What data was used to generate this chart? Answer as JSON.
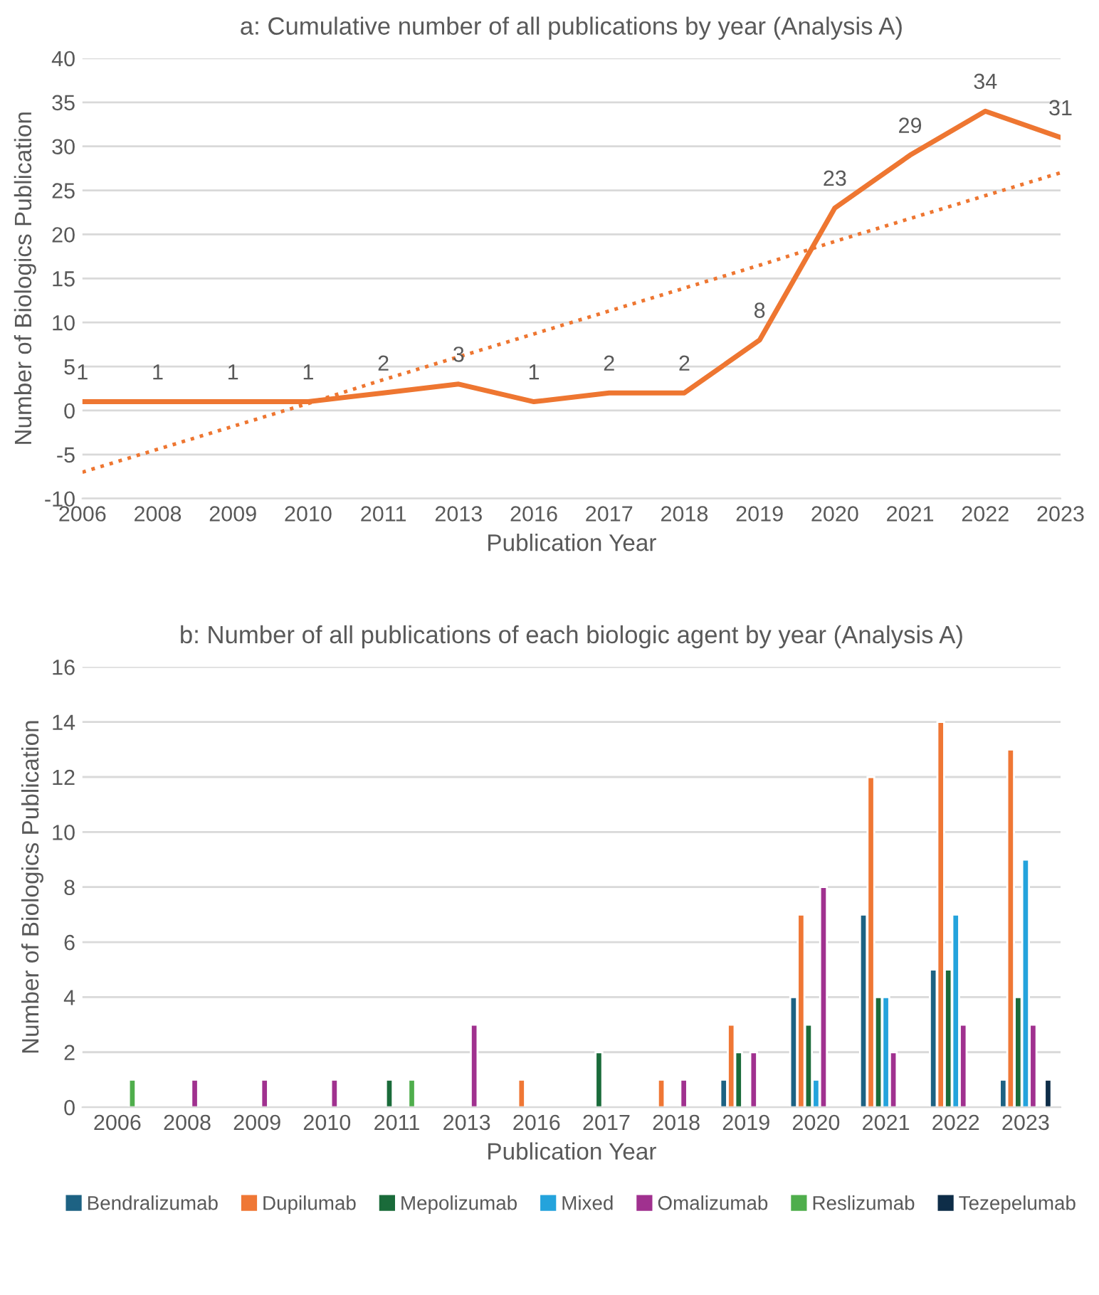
{
  "chart_data": [
    {
      "type": "line",
      "title": "a: Cumulative number of all publications by year (Analysis A)",
      "xlabel": "Publication Year",
      "ylabel": "Number of Biologics Publication",
      "categories": [
        "2006",
        "2008",
        "2009",
        "2010",
        "2011",
        "2013",
        "2016",
        "2017",
        "2018",
        "2019",
        "2020",
        "2021",
        "2022",
        "2023"
      ],
      "series": [
        {
          "color": "#ee7631",
          "line_style": "solid",
          "values": [
            1,
            1,
            1,
            1,
            2,
            3,
            1,
            2,
            2,
            8,
            23,
            29,
            34,
            31
          ],
          "value_labels": [
            "1",
            "1",
            "1",
            "1",
            "2",
            "3",
            "1",
            "2",
            "2",
            "8",
            "23",
            "29",
            "34",
            "31"
          ]
        },
        {
          "color": "#ee7631",
          "line_style": "dotted",
          "values": [
            -7,
            -4.4,
            -1.8,
            0.8,
            3.5,
            6.1,
            8.7,
            11.3,
            13.9,
            16.5,
            19.2,
            21.8,
            24.4,
            27
          ]
        }
      ],
      "ylim": [
        -10,
        40
      ],
      "yticks": [
        -10,
        -5,
        0,
        5,
        10,
        15,
        20,
        25,
        30,
        35,
        40
      ],
      "grid": "y",
      "legend": false,
      "marker": "none"
    },
    {
      "type": "bar",
      "title": "b: Number of all publications of each biologic agent by year (Analysis A)",
      "xlabel": "Publication Year",
      "ylabel": "Number of Biologics Publication",
      "categories": [
        "2006",
        "2008",
        "2009",
        "2010",
        "2011",
        "2013",
        "2016",
        "2017",
        "2018",
        "2019",
        "2020",
        "2021",
        "2022",
        "2023"
      ],
      "series": [
        {
          "name": "Bendralizumab",
          "color": "#1d6283",
          "values": [
            null,
            null,
            null,
            null,
            null,
            null,
            null,
            null,
            null,
            1,
            4,
            7,
            5,
            1
          ]
        },
        {
          "name": "Dupilumab",
          "color": "#ef7735",
          "values": [
            null,
            null,
            null,
            null,
            null,
            null,
            1,
            null,
            1,
            3,
            7,
            12,
            14,
            13
          ]
        },
        {
          "name": "Mepolizumab",
          "color": "#1a6b3a",
          "values": [
            null,
            null,
            null,
            null,
            1,
            null,
            null,
            2,
            null,
            2,
            3,
            4,
            5,
            4
          ]
        },
        {
          "name": "Mixed",
          "color": "#24a3dc",
          "values": [
            null,
            null,
            null,
            null,
            null,
            null,
            null,
            null,
            null,
            null,
            1,
            4,
            7,
            9
          ]
        },
        {
          "name": "Omalizumab",
          "color": "#a0318f",
          "values": [
            null,
            1,
            1,
            1,
            null,
            3,
            null,
            null,
            1,
            2,
            8,
            2,
            3,
            3
          ]
        },
        {
          "name": "Reslizumab",
          "color": "#4fae4c",
          "values": [
            1,
            null,
            null,
            null,
            1,
            null,
            null,
            null,
            null,
            null,
            null,
            null,
            null,
            null
          ]
        },
        {
          "name": "Tezepelumab",
          "color": "#0e2d48",
          "values": [
            null,
            null,
            null,
            null,
            null,
            null,
            null,
            null,
            null,
            null,
            null,
            null,
            null,
            1
          ]
        }
      ],
      "ylim": [
        0,
        16
      ],
      "yticks": [
        0,
        2,
        4,
        6,
        8,
        10,
        12,
        14,
        16
      ],
      "grid": "y",
      "legend": "bottom"
    }
  ]
}
